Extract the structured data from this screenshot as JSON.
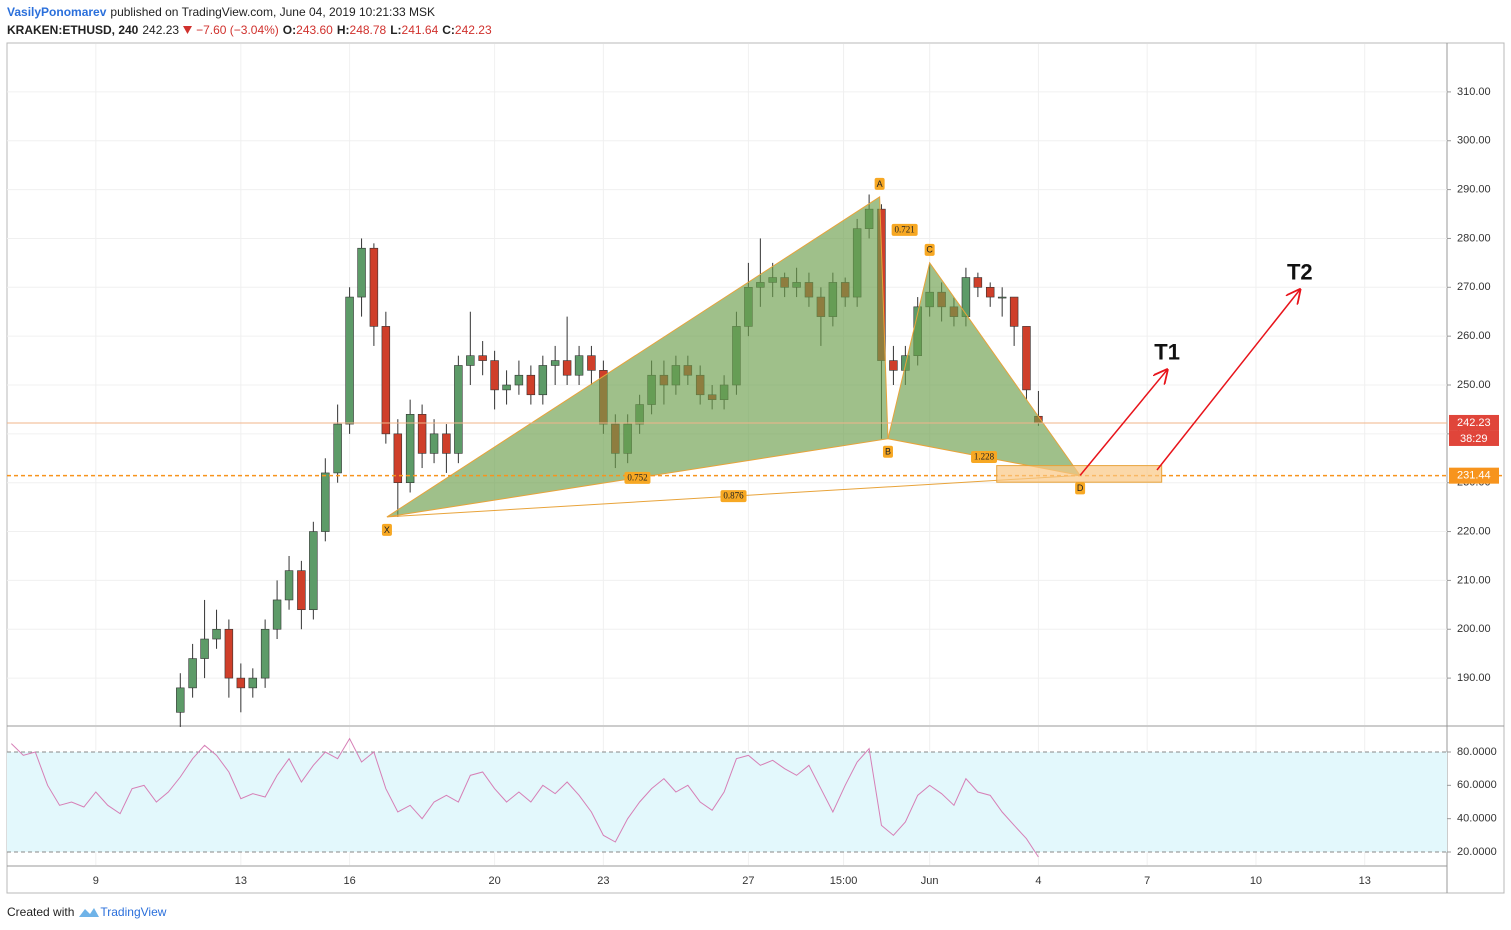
{
  "header": {
    "author": "VasilyPonomarev",
    "published": "published on TradingView.com, June 04, 2019 10:21:33 MSK",
    "symbol": "KRAKEN:ETHUSD, 240",
    "last": "242.23",
    "change": "−7.60 (−3.04%)",
    "ohlc": [
      {
        "key": "O:",
        "value": "243.60"
      },
      {
        "key": "H:",
        "value": "248.78"
      },
      {
        "key": "L:",
        "value": "241.64"
      },
      {
        "key": "C:",
        "value": "242.23"
      }
    ]
  },
  "footer": {
    "text": "Created with",
    "brand": "TradingView"
  },
  "chart_data": {
    "type": "candlestick",
    "up_color": "#5d9b68",
    "down_color": "#cf3f2a",
    "grid": true,
    "x": [
      11.33,
      11.67,
      12,
      12.33,
      12.67,
      13,
      13.33,
      13.67,
      14,
      14.33,
      14.67,
      15,
      15.33,
      15.67,
      16,
      16.33,
      16.67,
      17,
      17.33,
      17.67,
      18,
      18.33,
      18.67,
      19,
      19.33,
      19.67,
      20,
      20.33,
      20.67,
      21,
      21.33,
      21.67,
      22,
      22.33,
      22.67,
      23,
      23.33,
      23.67,
      24,
      24.33,
      24.67,
      25,
      25.33,
      25.67,
      26,
      26.33,
      26.67,
      27,
      27.33,
      27.67,
      28,
      28.33,
      28.67,
      29,
      29.33,
      29.67,
      30,
      30.33,
      30.67,
      31,
      31.33,
      31.67,
      32,
      32.33,
      32.67,
      33,
      33.33,
      33.67,
      34,
      34.33,
      34.67,
      35
    ],
    "open": [
      183,
      188,
      194,
      198,
      200,
      190,
      188,
      190,
      200,
      206,
      212,
      204,
      220,
      232,
      242,
      268,
      278,
      262,
      240,
      230,
      244,
      236,
      240,
      236,
      254,
      256,
      255,
      249,
      250,
      252,
      248,
      254,
      255,
      252,
      256,
      253,
      242,
      236,
      242,
      246,
      252,
      250,
      254,
      252,
      248,
      247,
      250,
      262,
      270,
      271,
      272,
      270,
      271,
      268,
      264,
      271,
      268,
      282,
      286,
      255,
      253,
      256,
      266,
      269,
      266,
      264,
      272,
      270,
      268,
      268,
      262,
      243.6
    ],
    "high": [
      191,
      197,
      206,
      204,
      202,
      193,
      192,
      202,
      210,
      215,
      214,
      222,
      235,
      246,
      270,
      280,
      279,
      265,
      243,
      247,
      246,
      243,
      242,
      256,
      265,
      259,
      257,
      253,
      255,
      254,
      256,
      258,
      264,
      258,
      258,
      255,
      244,
      244,
      248,
      255,
      255,
      256,
      256,
      254,
      250,
      252,
      265,
      275,
      280,
      275,
      273,
      274,
      273,
      270,
      273,
      272,
      284,
      289,
      287,
      258,
      258,
      268,
      275,
      271,
      268,
      274,
      273,
      271,
      270,
      268,
      262,
      248.78
    ],
    "low": [
      180,
      186,
      190,
      196,
      186,
      183,
      186,
      188,
      198,
      204,
      200,
      202,
      218,
      230,
      240,
      264,
      258,
      238,
      223,
      228,
      233,
      234,
      232,
      234,
      250,
      252,
      245,
      246,
      248,
      246,
      246,
      250,
      250,
      250,
      250,
      240,
      233,
      234,
      240,
      244,
      246,
      248,
      250,
      246,
      245,
      245,
      248,
      260,
      266,
      268,
      268,
      268,
      266,
      258,
      262,
      266,
      266,
      280,
      239,
      250,
      250,
      254,
      264,
      263,
      262,
      262,
      268,
      266,
      264,
      258,
      247,
      241.64
    ],
    "close": [
      188,
      194,
      198,
      200,
      190,
      188,
      190,
      200,
      206,
      212,
      204,
      220,
      232,
      242,
      268,
      278,
      262,
      240,
      230,
      244,
      236,
      240,
      236,
      254,
      256,
      255,
      249,
      250,
      252,
      248,
      254,
      255,
      252,
      256,
      253,
      242,
      236,
      242,
      246,
      252,
      250,
      254,
      252,
      248,
      247,
      250,
      262,
      270,
      271,
      272,
      270,
      271,
      268,
      264,
      271,
      268,
      282,
      286,
      255,
      253,
      256,
      266,
      269,
      266,
      264,
      272,
      270,
      268,
      268,
      262,
      249,
      242.23
    ],
    "xlim": [
      6.55,
      46.27
    ],
    "xticks": [
      9,
      13,
      16,
      20,
      23,
      27,
      {
        "value": 29.625,
        "label": "15:00"
      },
      {
        "value": 32,
        "label": "Jun"
      },
      {
        "value": 35,
        "label": "4"
      },
      {
        "value": 38,
        "label": "7"
      },
      {
        "value": 41,
        "label": "10"
      },
      {
        "value": 44,
        "label": "13"
      }
    ],
    "ylim": [
      180.4,
      319.6
    ],
    "yticks": [
      {
        "value": 190,
        "label": "190.00"
      },
      {
        "value": 200,
        "label": "200.00"
      },
      {
        "value": 210,
        "label": "210.00"
      },
      {
        "value": 220,
        "label": "220.00"
      },
      {
        "value": 230,
        "label": "230.00"
      },
      {
        "value": 240,
        "label": "240.00"
      },
      {
        "value": 250,
        "label": "250.00"
      },
      {
        "value": 260,
        "label": "260.00"
      },
      {
        "value": 270,
        "label": "270.00"
      },
      {
        "value": 280,
        "label": "280.00"
      },
      {
        "value": 290,
        "label": "290.00"
      },
      {
        "value": 300,
        "label": "300.00"
      },
      {
        "value": 310,
        "label": "310.00"
      }
    ],
    "last_price": 242.23,
    "last_color": "#e0453a",
    "countdown": "38:29",
    "alert_level": 231.44,
    "alert_color": "#f7941d",
    "pattern": {
      "fill": "#6b9e4b",
      "stroke": "#e8a33a",
      "points": [
        {
          "label": "X",
          "x": 17.03,
          "y": 223
        },
        {
          "label": "A",
          "x": 30.62,
          "y": 288.5
        },
        {
          "label": "B",
          "x": 30.85,
          "y": 239
        },
        {
          "label": "C",
          "x": 32,
          "y": 275
        },
        {
          "label": "D",
          "x": 36.15,
          "y": 231.5
        }
      ],
      "ratios": [
        0.752,
        0.721,
        1.228,
        0.876
      ]
    },
    "target_zone": {
      "x0": 33.85,
      "x1": 38.4,
      "low": 230.1,
      "high": 233.5,
      "color": "#f9c784"
    },
    "targets": [
      {
        "label": "T1",
        "x0": 36.15,
        "y0": 231.5,
        "x1": 38.55,
        "y1": 253.1
      },
      {
        "label": "T2",
        "x0": 38.27,
        "y0": 232.6,
        "x1": 42.21,
        "y1": 269.5
      }
    ],
    "target_color": "#e8141b",
    "rsi": {
      "type": "line",
      "color": "#d67fb6",
      "band_fill": "#e3f8fc",
      "bands": [
        80,
        20
      ],
      "x": [
        6.67,
        7,
        7.33,
        7.67,
        8,
        8.33,
        8.67,
        9,
        9.33,
        9.67,
        10,
        10.33,
        10.67,
        11,
        11.33,
        11.67,
        12,
        12.33,
        12.67,
        13,
        13.33,
        13.67,
        14,
        14.33,
        14.67,
        15,
        15.33,
        15.67,
        16,
        16.33,
        16.67,
        17,
        17.33,
        17.67,
        18,
        18.33,
        18.67,
        19,
        19.33,
        19.67,
        20,
        20.33,
        20.67,
        21,
        21.33,
        21.67,
        22,
        22.33,
        22.67,
        23,
        23.33,
        23.67,
        24,
        24.33,
        24.67,
        25,
        25.33,
        25.67,
        26,
        26.33,
        26.67,
        27,
        27.33,
        27.67,
        28,
        28.33,
        28.67,
        29,
        29.33,
        29.67,
        30,
        30.33,
        30.67,
        31,
        31.33,
        31.67,
        32,
        32.33,
        32.67,
        33,
        33.33,
        33.67,
        34,
        34.33,
        34.67,
        35
      ],
      "values": [
        85,
        78,
        80,
        60,
        48,
        50,
        47,
        56,
        48,
        43,
        58,
        60,
        50,
        56,
        65,
        76,
        84,
        78,
        68,
        52,
        55,
        53,
        66,
        76,
        62,
        72,
        80,
        76,
        88,
        74,
        80,
        58,
        44,
        48,
        40,
        50,
        54,
        50,
        66,
        68,
        58,
        50,
        56,
        50,
        60,
        55,
        62,
        54,
        44,
        30,
        26,
        40,
        50,
        58,
        64,
        56,
        60,
        50,
        45,
        56,
        76,
        78,
        72,
        75,
        70,
        66,
        72,
        58,
        44,
        60,
        74,
        82,
        36,
        30,
        38,
        54,
        60,
        55,
        48,
        64,
        56,
        54,
        44,
        36,
        28,
        17
      ],
      "ylim": [
        12.2,
        95
      ],
      "yticks": [
        {
          "value": 20,
          "label": "20.0000"
        },
        {
          "value": 40,
          "label": "40.0000"
        },
        {
          "value": 60,
          "label": "60.0000"
        },
        {
          "value": 80,
          "label": "80.0000"
        }
      ]
    }
  }
}
